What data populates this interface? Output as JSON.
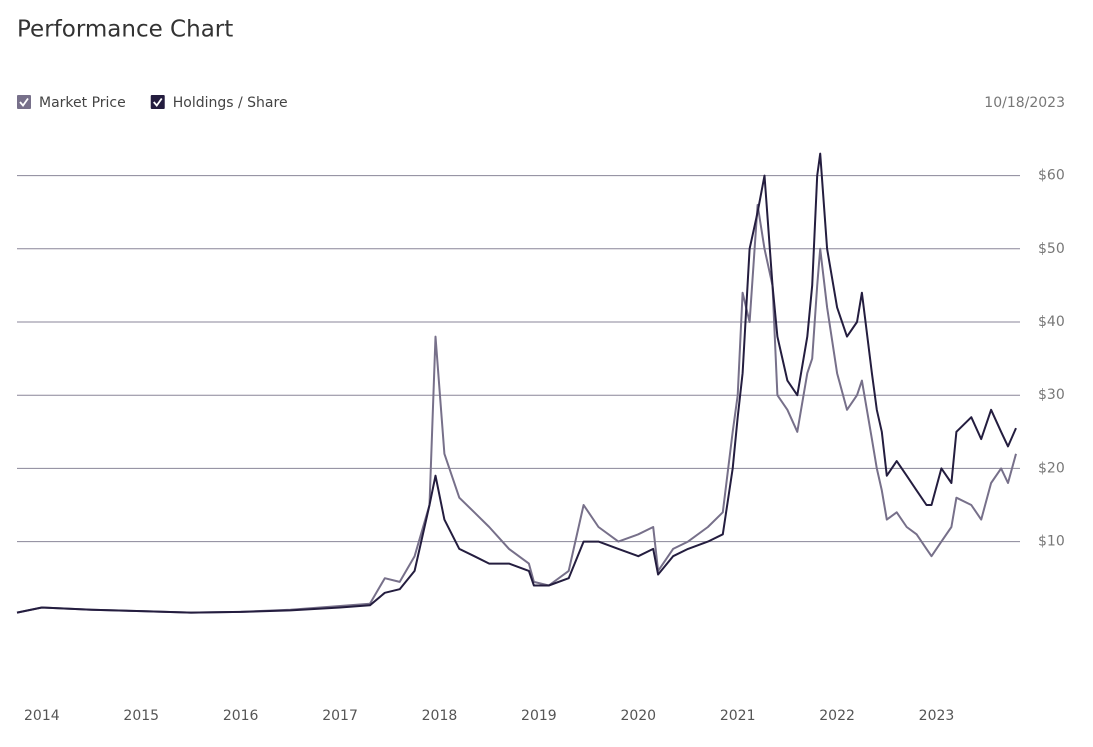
{
  "chart_data": {
    "type": "line",
    "title": "Performance Chart",
    "as_of_date": "10/18/2023",
    "x": [
      2013.75,
      2014.0,
      2014.5,
      2015.0,
      2015.5,
      2016.0,
      2016.5,
      2017.0,
      2017.3,
      2017.45,
      2017.6,
      2017.75,
      2017.9,
      2017.96,
      2018.05,
      2018.2,
      2018.35,
      2018.5,
      2018.7,
      2018.9,
      2018.95,
      2019.1,
      2019.3,
      2019.45,
      2019.6,
      2019.8,
      2020.0,
      2020.15,
      2020.2,
      2020.35,
      2020.5,
      2020.7,
      2020.85,
      2020.95,
      2021.0,
      2021.05,
      2021.12,
      2021.2,
      2021.27,
      2021.35,
      2021.4,
      2021.5,
      2021.6,
      2021.7,
      2021.75,
      2021.8,
      2021.83,
      2021.9,
      2022.0,
      2022.1,
      2022.2,
      2022.25,
      2022.35,
      2022.4,
      2022.45,
      2022.5,
      2022.6,
      2022.7,
      2022.8,
      2022.9,
      2022.95,
      2023.05,
      2023.15,
      2023.2,
      2023.35,
      2023.45,
      2023.55,
      2023.65,
      2023.72,
      2023.8
    ],
    "series": [
      {
        "name": "Market Price",
        "color": "#77708a",
        "values": [
          0.3,
          1.0,
          0.7,
          0.5,
          0.3,
          0.4,
          0.7,
          1.2,
          1.5,
          5,
          4.5,
          8,
          15,
          38,
          22,
          16,
          14,
          12,
          9,
          7,
          4.5,
          4,
          6,
          15,
          12,
          10,
          11,
          12,
          6,
          9,
          10,
          12,
          14,
          25,
          30,
          44,
          40,
          56,
          50,
          45,
          30,
          28,
          25,
          33,
          35,
          45,
          50,
          42,
          33,
          28,
          30,
          32,
          24,
          20,
          17,
          13,
          14,
          12,
          11,
          9,
          8,
          10,
          12,
          16,
          15,
          13,
          18,
          20,
          18,
          22
        ]
      },
      {
        "name": "Holdings / Share",
        "color": "#241d3f",
        "values": [
          0.3,
          1.0,
          0.7,
          0.5,
          0.3,
          0.4,
          0.6,
          1.0,
          1.3,
          3,
          3.5,
          6,
          15,
          19,
          13,
          9,
          8,
          7,
          7,
          6,
          4,
          4,
          5,
          10,
          10,
          9,
          8,
          9,
          5.5,
          8,
          9,
          10,
          11,
          20,
          27,
          33,
          50,
          55,
          60,
          45,
          38,
          32,
          30,
          38,
          45,
          60,
          63,
          50,
          42,
          38,
          40,
          44,
          33,
          28,
          25,
          19,
          21,
          19,
          17,
          15,
          15,
          20,
          18,
          25,
          27,
          24,
          28,
          25,
          23,
          25.5
        ]
      }
    ],
    "xlim": [
      2013.75,
      2023.8
    ],
    "xticks": [
      2014,
      2015,
      2016,
      2017,
      2018,
      2019,
      2020,
      2021,
      2022,
      2023
    ],
    "ylim": [
      -10,
      65
    ],
    "yticks": [
      {
        "value": 10,
        "label": "$10"
      },
      {
        "value": 20,
        "label": "$20"
      },
      {
        "value": 30,
        "label": "$30"
      },
      {
        "value": 40,
        "label": "$40"
      },
      {
        "value": 50,
        "label": "$50"
      },
      {
        "value": 60,
        "label": "$60"
      }
    ],
    "grid": true
  }
}
